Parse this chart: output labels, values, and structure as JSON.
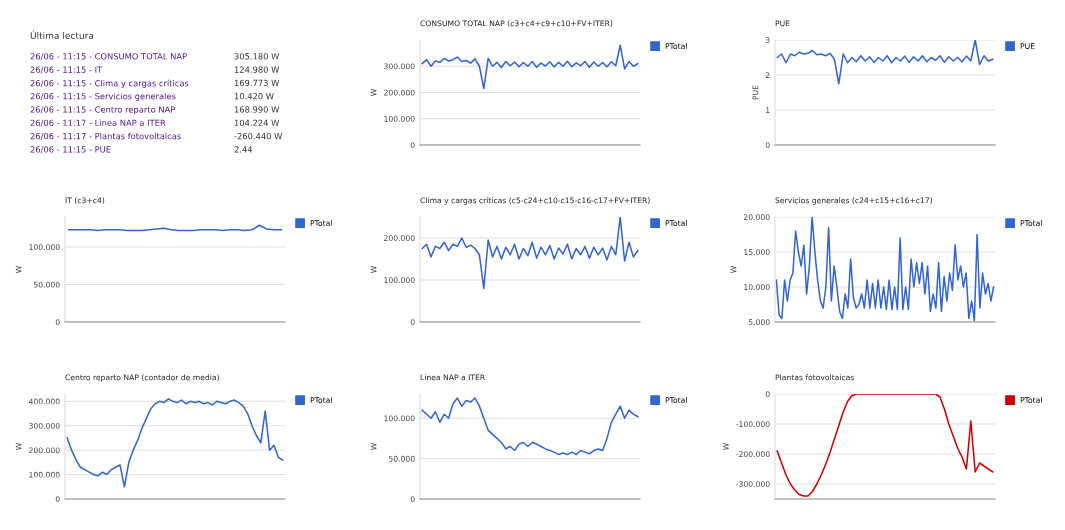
{
  "chart_data": [
    {
      "type": "other",
      "title": "Última lectura",
      "annotations": [
        "26/06 - 11:15 - CONSUMO TOTAL NAP",
        "26/06 - 11:15 - IT",
        "26/06 - 11:15 - Clima y cargas críticas",
        "26/06 - 11:15 - Servicios generales",
        "26/06 - 11:15 - Centro reparto NAP",
        "26/06 - 11:17 - Linea NAP a ITER",
        "26/06 - 11:17 - Plantas fotovoltaicas",
        "26/06 - 11:15 - PUE",
        "305.180 W",
        "124.980 W",
        "169.773 W",
        "10.420 W",
        "168.990 W",
        "104.224 W",
        "-260.440 W",
        "2.44"
      ]
    },
    {
      "type": "line",
      "title": "CONSUMO TOTAL NAP (c3+c4+c9+c10+FV+ITER)",
      "ylabel": "W",
      "grid": "y",
      "legend": "right",
      "categories": [
        null,
        null,
        null,
        null,
        null,
        null,
        null,
        null,
        null,
        null,
        null,
        null,
        null,
        null,
        null,
        null,
        null,
        null,
        null,
        null,
        null,
        null,
        null,
        null,
        null,
        null,
        null,
        null,
        null,
        null,
        null,
        null,
        null,
        null,
        null,
        null,
        null,
        null,
        null,
        null,
        null,
        null,
        null,
        null,
        null,
        null,
        null,
        null,
        null,
        null
      ],
      "ylim": [
        0,
        400
      ],
      "yticks": [
        0,
        {
          "value": 100,
          "label": "100.000"
        },
        {
          "value": 200,
          "label": "200.000"
        },
        {
          "value": 300,
          "label": "300.000"
        }
      ],
      "series": [
        {
          "name": "PTotal",
          "color": "#3366cc",
          "values": [
            310,
            325,
            300,
            320,
            315,
            330,
            320,
            325,
            335,
            318,
            322,
            312,
            328,
            300,
            215,
            330,
            300,
            315,
            295,
            318,
            302,
            316,
            298,
            314,
            300,
            318,
            296,
            312,
            301,
            317,
            297,
            315,
            300,
            319,
            298,
            313,
            302,
            318,
            296,
            316,
            300,
            314,
            298,
            317,
            302,
            380,
            290,
            318,
            300,
            310
          ]
        }
      ]
    },
    {
      "type": "line",
      "title": "PUE",
      "ylabel": "PUE",
      "grid": "y",
      "legend": "right",
      "categories": [
        null,
        null,
        null,
        null,
        null,
        null,
        null,
        null,
        null,
        null,
        null,
        null,
        null,
        null,
        null,
        null,
        null,
        null,
        null,
        null,
        null,
        null,
        null,
        null,
        null,
        null,
        null,
        null,
        null,
        null,
        null,
        null,
        null,
        null,
        null,
        null,
        null,
        null,
        null,
        null,
        null,
        null,
        null,
        null,
        null,
        null,
        null,
        null,
        null,
        null
      ],
      "ylim": [
        0,
        3
      ],
      "yticks": [
        0,
        1,
        2,
        3
      ],
      "series": [
        {
          "name": "PUE",
          "color": "#3366cc",
          "values": [
            2.5,
            2.6,
            2.35,
            2.6,
            2.55,
            2.65,
            2.6,
            2.62,
            2.7,
            2.58,
            2.6,
            2.55,
            2.62,
            2.45,
            1.75,
            2.6,
            2.35,
            2.5,
            2.38,
            2.55,
            2.4,
            2.52,
            2.36,
            2.5,
            2.4,
            2.55,
            2.35,
            2.5,
            2.4,
            2.54,
            2.36,
            2.52,
            2.4,
            2.55,
            2.38,
            2.5,
            2.42,
            2.55,
            2.36,
            2.52,
            2.4,
            2.5,
            2.38,
            2.54,
            2.4,
            3.0,
            2.3,
            2.55,
            2.4,
            2.45
          ]
        }
      ]
    },
    {
      "type": "line",
      "title": "IT (c3+c4)",
      "ylabel": "W",
      "grid": "y",
      "legend": "right",
      "categories": [
        null,
        null,
        null,
        null,
        null,
        null,
        null,
        null,
        null,
        null,
        null,
        null,
        null,
        null,
        null,
        null,
        null,
        null,
        null,
        null,
        null,
        null,
        null,
        null,
        null,
        null,
        null,
        null,
        null,
        null
      ],
      "ylim": [
        0,
        140
      ],
      "yticks": [
        0,
        {
          "value": 50,
          "label": "50.000"
        },
        {
          "value": 100,
          "label": "100.000"
        }
      ],
      "series": [
        {
          "name": "PTotal",
          "color": "#3366cc",
          "values": [
            123,
            123,
            123,
            123,
            122,
            123,
            123,
            123,
            122,
            122,
            122,
            123,
            124,
            125,
            123,
            122,
            122,
            122,
            123,
            123,
            123,
            122,
            123,
            123,
            122,
            123,
            129,
            124,
            123,
            123
          ]
        }
      ]
    },
    {
      "type": "line",
      "title": "Clima y cargas críticas (c5-c24+c10-c15-c16-c17+FV+ITER)",
      "ylabel": "W",
      "grid": "y",
      "legend": "right",
      "categories": [
        null,
        null,
        null,
        null,
        null,
        null,
        null,
        null,
        null,
        null,
        null,
        null,
        null,
        null,
        null,
        null,
        null,
        null,
        null,
        null,
        null,
        null,
        null,
        null,
        null,
        null,
        null,
        null,
        null,
        null,
        null,
        null,
        null,
        null,
        null,
        null,
        null,
        null,
        null,
        null,
        null,
        null,
        null,
        null,
        null,
        null,
        null,
        null,
        null,
        null
      ],
      "ylim": [
        0,
        250
      ],
      "yticks": [
        0,
        {
          "value": 100,
          "label": "100.000"
        },
        {
          "value": 200,
          "label": "200.000"
        }
      ],
      "series": [
        {
          "name": "PTotal",
          "color": "#3366cc",
          "values": [
            175,
            185,
            155,
            180,
            175,
            190,
            170,
            185,
            180,
            200,
            178,
            183,
            175,
            160,
            80,
            195,
            155,
            180,
            150,
            178,
            160,
            185,
            150,
            175,
            158,
            190,
            152,
            178,
            160,
            182,
            150,
            176,
            162,
            185,
            150,
            175,
            160,
            180,
            152,
            178,
            160,
            176,
            148,
            180,
            160,
            250,
            145,
            190,
            155,
            170
          ]
        }
      ]
    },
    {
      "type": "line",
      "title": "Servicios generales (c24+c15+c16+c17)",
      "ylabel": "W",
      "grid": "y",
      "legend": "right",
      "categories": [
        null,
        null,
        null,
        null,
        null,
        null,
        null,
        null,
        null,
        null,
        null,
        null,
        null,
        null,
        null,
        null,
        null,
        null,
        null,
        null,
        null,
        null,
        null,
        null,
        null,
        null,
        null,
        null,
        null,
        null,
        null,
        null,
        null,
        null,
        null,
        null,
        null,
        null,
        null,
        null,
        null,
        null,
        null,
        null,
        null,
        null,
        null,
        null,
        null,
        null,
        null,
        null,
        null,
        null,
        null,
        null,
        null,
        null,
        null,
        null,
        null,
        null,
        null,
        null,
        null,
        null,
        null,
        null,
        null,
        null,
        null,
        null,
        null,
        null,
        null,
        null,
        null,
        null,
        null,
        null
      ],
      "ylim": [
        5,
        20
      ],
      "yticks": [
        {
          "value": 5,
          "label": "5.000"
        },
        {
          "value": 10,
          "label": "10.000"
        },
        {
          "value": 15,
          "label": "15.000"
        },
        {
          "value": 20,
          "label": "20.000"
        }
      ],
      "series": [
        {
          "name": "PTotal",
          "color": "#3366cc",
          "values": [
            11,
            6,
            5.5,
            11,
            8,
            11,
            12,
            18,
            15,
            13,
            16,
            9,
            13,
            20,
            15,
            11,
            8,
            7,
            10,
            18.5,
            8,
            13,
            10,
            6.5,
            5.5,
            9,
            7,
            14,
            8.5,
            7,
            7.5,
            9,
            7,
            11,
            7,
            10.5,
            7,
            11,
            7,
            10,
            6.8,
            11,
            6.8,
            10,
            6.8,
            17,
            6.8,
            10,
            6.8,
            14,
            10,
            13.5,
            10.5,
            13.5,
            9,
            13,
            6.5,
            9,
            7,
            13.5,
            6.5,
            11.5,
            8,
            12,
            9.5,
            16,
            11,
            13,
            10,
            12,
            5.5,
            8,
            5.2,
            17.5,
            7,
            12,
            9,
            10.5,
            8,
            10
          ]
        }
      ]
    },
    {
      "type": "line",
      "title": "Centro reparto NAP (contador de media)",
      "ylabel": "W",
      "grid": "y",
      "legend": "right",
      "categories": [
        null,
        null,
        null,
        null,
        null,
        null,
        null,
        null,
        null,
        null,
        null,
        null,
        null,
        null,
        null,
        null,
        null,
        null,
        null,
        null,
        null,
        null,
        null,
        null,
        null,
        null,
        null,
        null,
        null,
        null,
        null,
        null,
        null,
        null,
        null,
        null,
        null,
        null,
        null,
        null,
        null,
        null,
        null,
        null,
        null,
        null,
        null,
        null,
        null,
        null
      ],
      "ylim": [
        0,
        430
      ],
      "yticks": [
        0,
        {
          "value": 100,
          "label": "100.000"
        },
        {
          "value": 200,
          "label": "200.000"
        },
        {
          "value": 300,
          "label": "300.000"
        },
        {
          "value": 400,
          "label": "400.000"
        }
      ],
      "series": [
        {
          "name": "PTotal",
          "color": "#3366cc",
          "values": [
            250,
            200,
            160,
            130,
            120,
            110,
            100,
            95,
            110,
            100,
            120,
            130,
            140,
            50,
            150,
            200,
            240,
            290,
            330,
            370,
            390,
            400,
            395,
            410,
            400,
            395,
            405,
            390,
            400,
            395,
            400,
            390,
            395,
            385,
            400,
            395,
            390,
            400,
            405,
            395,
            380,
            350,
            300,
            260,
            230,
            360,
            200,
            220,
            170,
            160
          ]
        }
      ]
    },
    {
      "type": "line",
      "title": "Linea NAP a ITER",
      "ylabel": "W",
      "grid": "y",
      "legend": "right",
      "categories": [
        null,
        null,
        null,
        null,
        null,
        null,
        null,
        null,
        null,
        null,
        null,
        null,
        null,
        null,
        null,
        null,
        null,
        null,
        null,
        null,
        null,
        null,
        null,
        null,
        null,
        null,
        null,
        null,
        null,
        null,
        null,
        null,
        null,
        null,
        null,
        null,
        null,
        null,
        null,
        null,
        null,
        null,
        null,
        null,
        null,
        null,
        null,
        null,
        null,
        null
      ],
      "ylim": [
        0,
        130
      ],
      "yticks": [
        0,
        {
          "value": 50,
          "label": "50.000"
        },
        {
          "value": 100,
          "label": "100.000"
        }
      ],
      "series": [
        {
          "name": "PTotal",
          "color": "#3366cc",
          "values": [
            110,
            105,
            100,
            108,
            95,
            105,
            100,
            118,
            125,
            115,
            122,
            120,
            125,
            115,
            100,
            85,
            80,
            75,
            70,
            62,
            65,
            60,
            68,
            70,
            65,
            70,
            68,
            65,
            62,
            60,
            58,
            55,
            57,
            55,
            58,
            55,
            60,
            58,
            56,
            60,
            62,
            60,
            75,
            95,
            105,
            115,
            100,
            110,
            105,
            102
          ]
        }
      ]
    },
    {
      "type": "line",
      "title": "Plantas fotovoltaicas",
      "ylabel": "W",
      "grid": "y",
      "legend": "right",
      "categories": [
        null,
        null,
        null,
        null,
        null,
        null,
        null,
        null,
        null,
        null,
        null,
        null,
        null,
        null,
        null,
        null,
        null,
        null,
        null,
        null,
        null,
        null,
        null,
        null,
        null,
        null,
        null,
        null,
        null,
        null,
        null,
        null,
        null,
        null,
        null,
        null,
        null,
        null,
        null,
        null,
        null,
        null,
        null,
        null,
        null,
        null,
        null,
        null,
        null,
        null
      ],
      "ylim": [
        -350,
        0
      ],
      "yticks": [
        {
          "value": -300,
          "label": "-300.000"
        },
        {
          "value": -200,
          "label": "-200.000"
        },
        {
          "value": -100,
          "label": "-100.000"
        },
        0
      ],
      "series": [
        {
          "name": "PTotal",
          "color": "#cc0000",
          "values": [
            -190,
            -230,
            -270,
            -300,
            -320,
            -335,
            -340,
            -340,
            -325,
            -300,
            -270,
            -235,
            -195,
            -150,
            -105,
            -60,
            -25,
            -5,
            0,
            0,
            0,
            0,
            0,
            0,
            0,
            0,
            0,
            0,
            0,
            0,
            0,
            0,
            0,
            0,
            0,
            0,
            0,
            -10,
            -50,
            -100,
            -140,
            -180,
            -210,
            -250,
            -90,
            -260,
            -230,
            -240,
            -250,
            -260
          ]
        }
      ]
    }
  ]
}
